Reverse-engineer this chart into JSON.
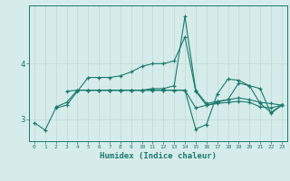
{
  "xlabel": "Humidex (Indice chaleur)",
  "bg_color": "#d6ecea",
  "line_color": "#1a7a6e",
  "grid_color": "#c0dcd8",
  "x_ticks": [
    0,
    1,
    2,
    3,
    4,
    5,
    6,
    7,
    8,
    9,
    10,
    11,
    12,
    13,
    14,
    15,
    16,
    17,
    18,
    19,
    20,
    21,
    22,
    23
  ],
  "series": [
    [
      2.93,
      2.8,
      3.2,
      3.25,
      3.5,
      3.75,
      3.75,
      3.75,
      3.78,
      3.85,
      3.95,
      4.0,
      4.0,
      4.05,
      4.48,
      3.5,
      3.25,
      3.28,
      3.3,
      3.32,
      3.3,
      3.22,
      3.2,
      3.25
    ],
    [
      null,
      null,
      3.22,
      3.3,
      3.52,
      3.52,
      3.52,
      3.52,
      3.52,
      3.52,
      3.52,
      3.52,
      3.52,
      3.52,
      3.52,
      3.2,
      3.25,
      3.3,
      3.35,
      3.65,
      3.6,
      3.28,
      3.12,
      3.25
    ],
    [
      null,
      null,
      null,
      3.5,
      3.52,
      3.52,
      3.52,
      3.52,
      3.52,
      3.52,
      3.52,
      3.52,
      3.52,
      3.52,
      3.52,
      2.82,
      2.9,
      3.45,
      3.72,
      3.7,
      3.6,
      3.55,
      3.1,
      3.25
    ],
    [
      null,
      null,
      null,
      null,
      null,
      3.52,
      3.52,
      3.52,
      3.52,
      3.52,
      3.52,
      3.55,
      3.55,
      3.6,
      4.85,
      3.52,
      3.28,
      3.32,
      3.35,
      3.38,
      3.35,
      3.3,
      3.28,
      3.25
    ]
  ],
  "ylim": [
    2.6,
    5.05
  ],
  "yticks": [
    3.0,
    4.0
  ],
  "figsize": [
    3.2,
    2.0
  ],
  "dpi": 100
}
